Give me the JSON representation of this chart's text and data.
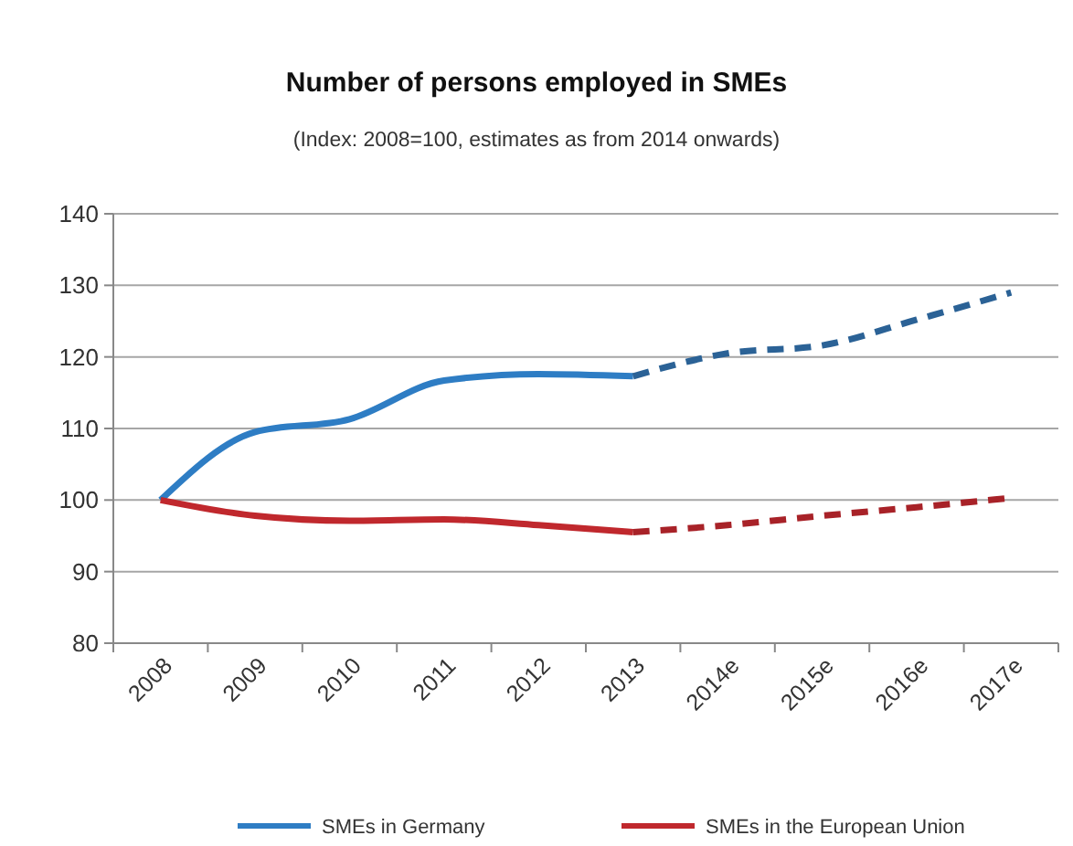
{
  "chart_data": {
    "type": "line",
    "title": "Number of persons employed in SMEs",
    "subtitle": "(Index: 2008=100, estimates as from 2014 onwards)",
    "categories": [
      "2008",
      "2009",
      "2010",
      "2011",
      "2012",
      "2013",
      "2014e",
      "2015e",
      "2016e",
      "2017e"
    ],
    "series": [
      {
        "name": "SMEs in Germany",
        "color": "#2e7dc4",
        "line_style": "solid",
        "values": [
          100,
          109.5,
          111.3,
          116.7,
          117.6,
          117.3,
          null,
          null,
          null,
          null
        ]
      },
      {
        "color": "#2b6296",
        "line_style": "dashed",
        "values": [
          null,
          null,
          null,
          null,
          null,
          117.3,
          120.5,
          121.6,
          125.2,
          129
        ]
      },
      {
        "name": "SMEs in the European Union",
        "color": "#c0282d",
        "line_style": "solid",
        "values": [
          100,
          97.8,
          97.1,
          97.3,
          96.5,
          95.5,
          null,
          null,
          null,
          null
        ]
      },
      {
        "color": "#a82228",
        "line_style": "dashed",
        "values": [
          null,
          null,
          null,
          null,
          null,
          95.5,
          96.5,
          97.8,
          99,
          100.3
        ]
      }
    ],
    "ylim": [
      80,
      140
    ],
    "yticks": [
      80,
      90,
      100,
      110,
      120,
      130,
      140
    ],
    "grid": "y",
    "legend": "bottom",
    "marker": "none"
  }
}
